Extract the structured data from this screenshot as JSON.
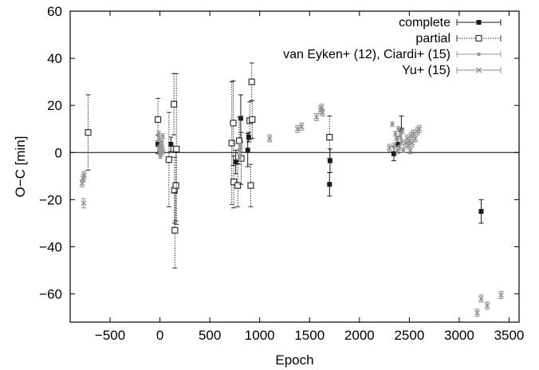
{
  "chart_data": {
    "type": "scatter",
    "xlabel": "Epoch",
    "ylabel": "O−C [min]",
    "xlim": [
      -900,
      3600
    ],
    "ylim": [
      -72,
      60
    ],
    "xticks": [
      -500,
      0,
      500,
      1000,
      1500,
      2000,
      2500,
      3000,
      3500
    ],
    "yticks": [
      -60,
      -40,
      -20,
      0,
      20,
      40,
      60
    ],
    "zero_line": true,
    "grid": false,
    "legend_position": "top-right",
    "series": [
      {
        "name": "complete",
        "color": "#1a1a1a",
        "marker": "filled-square",
        "line": "solid",
        "points": [
          {
            "x": -20,
            "y": 3.5,
            "err": 4
          },
          {
            "x": 110,
            "y": 3.5,
            "err": 3
          },
          {
            "x": 760,
            "y": -4,
            "err": 5
          },
          {
            "x": 810,
            "y": 14.5,
            "err": 10
          },
          {
            "x": 880,
            "y": 1,
            "err": 7
          },
          {
            "x": 890,
            "y": 6.5,
            "err": 2
          },
          {
            "x": 1700,
            "y": -13.5,
            "err": 5
          },
          {
            "x": 1705,
            "y": -3.5,
            "err": 5
          },
          {
            "x": 2345,
            "y": -0.5,
            "err": 3
          },
          {
            "x": 2385,
            "y": 3.5,
            "err": 3.5
          },
          {
            "x": 2420,
            "y": 9.5,
            "err": 6
          },
          {
            "x": 3220,
            "y": -25,
            "err": 5
          }
        ]
      },
      {
        "name": "partial",
        "color": "#333333",
        "marker": "open-square",
        "line": "dotted",
        "points": [
          {
            "x": -720,
            "y": 8.5,
            "err": 16
          },
          {
            "x": -20,
            "y": 14,
            "err": 9
          },
          {
            "x": 90,
            "y": -3,
            "err": 20
          },
          {
            "x": 140,
            "y": 20.5,
            "err": 13
          },
          {
            "x": 145,
            "y": -16,
            "err": 14
          },
          {
            "x": 150,
            "y": -33,
            "err": 16
          },
          {
            "x": 160,
            "y": -14,
            "err": 15
          },
          {
            "x": 165,
            "y": 1.5,
            "err": 32
          },
          {
            "x": 720,
            "y": 4,
            "err": 26
          },
          {
            "x": 735,
            "y": 12.5,
            "err": 18
          },
          {
            "x": 740,
            "y": -12.5,
            "err": 11
          },
          {
            "x": 780,
            "y": -14,
            "err": 9
          },
          {
            "x": 795,
            "y": 5,
            "err": 10
          },
          {
            "x": 815,
            "y": -2.5,
            "err": 11
          },
          {
            "x": 900,
            "y": 13.5,
            "err": 8
          },
          {
            "x": 910,
            "y": -14,
            "err": 9
          },
          {
            "x": 920,
            "y": 30,
            "err": 8
          },
          {
            "x": 925,
            "y": 14,
            "err": 8
          },
          {
            "x": 1700,
            "y": 6.5,
            "err": 9
          }
        ]
      },
      {
        "name": "van Eyken+ (12), Ciardi+ (15)",
        "color": "#9a9a9a",
        "marker": "filled-circle",
        "line": "solid",
        "points": [
          {
            "x": -12,
            "y": 8,
            "err": 1
          },
          {
            "x": -8,
            "y": 6,
            "err": 1
          },
          {
            "x": -4,
            "y": 2,
            "err": 1
          },
          {
            "x": 0,
            "y": 0,
            "err": 1
          },
          {
            "x": 4,
            "y": -1.5,
            "err": 1
          },
          {
            "x": 8,
            "y": 3.5,
            "err": 1
          },
          {
            "x": 12,
            "y": 1.5,
            "err": 1
          },
          {
            "x": 16,
            "y": -0.5,
            "err": 1
          },
          {
            "x": 20,
            "y": 4.5,
            "err": 1
          },
          {
            "x": 24,
            "y": 2.5,
            "err": 1
          },
          {
            "x": 28,
            "y": 7,
            "err": 1
          },
          {
            "x": 32,
            "y": 0.5,
            "err": 1
          },
          {
            "x": 795,
            "y": 0.5,
            "err": 1
          },
          {
            "x": 800,
            "y": -2,
            "err": 1
          },
          {
            "x": 805,
            "y": 3,
            "err": 1
          },
          {
            "x": 810,
            "y": 1.5,
            "err": 1
          },
          {
            "x": 2330,
            "y": 12,
            "err": 1
          },
          {
            "x": 2350,
            "y": 3,
            "err": 1
          },
          {
            "x": 2360,
            "y": 8,
            "err": 1
          },
          {
            "x": 2370,
            "y": 6,
            "err": 1
          },
          {
            "x": 2380,
            "y": 0.5,
            "err": 1
          },
          {
            "x": 2390,
            "y": 10,
            "err": 1
          },
          {
            "x": 2400,
            "y": 2,
            "err": 1
          },
          {
            "x": 2410,
            "y": 7,
            "err": 1
          },
          {
            "x": 2420,
            "y": 4.5,
            "err": 1
          },
          {
            "x": 2430,
            "y": 9,
            "err": 1
          },
          {
            "x": 2440,
            "y": 1,
            "err": 1
          }
        ]
      },
      {
        "name": "Yu+ (15)",
        "color": "#8c8c8c",
        "marker": "cross",
        "line": "solid",
        "points": [
          {
            "x": -780,
            "y": -13,
            "err": 1.5
          },
          {
            "x": -770,
            "y": -11,
            "err": 1.5
          },
          {
            "x": -760,
            "y": -9.5,
            "err": 1.5
          },
          {
            "x": -765,
            "y": -21.5,
            "err": 2
          },
          {
            "x": 1100,
            "y": 6,
            "err": 1.5
          },
          {
            "x": 1380,
            "y": 10,
            "err": 1.5
          },
          {
            "x": 1420,
            "y": 11,
            "err": 1.5
          },
          {
            "x": 1570,
            "y": 15,
            "err": 1.5
          },
          {
            "x": 1610,
            "y": 18,
            "err": 1.5
          },
          {
            "x": 1620,
            "y": 19,
            "err": 1.5
          },
          {
            "x": 1630,
            "y": 17,
            "err": 1.5
          },
          {
            "x": 2300,
            "y": 2,
            "err": 1.5
          },
          {
            "x": 2460,
            "y": 4,
            "err": 1.5
          },
          {
            "x": 2480,
            "y": 6,
            "err": 1.5
          },
          {
            "x": 2490,
            "y": 3,
            "err": 1.5
          },
          {
            "x": 2500,
            "y": 5,
            "err": 1.5
          },
          {
            "x": 2510,
            "y": 1,
            "err": 1.5
          },
          {
            "x": 2520,
            "y": 7,
            "err": 1.5
          },
          {
            "x": 2530,
            "y": 4,
            "err": 1.5
          },
          {
            "x": 2540,
            "y": 8,
            "err": 1.5
          },
          {
            "x": 2560,
            "y": 6,
            "err": 1.5
          },
          {
            "x": 2580,
            "y": 9,
            "err": 1.5
          },
          {
            "x": 2600,
            "y": 10,
            "err": 1.5
          },
          {
            "x": 3180,
            "y": -68,
            "err": 1.5
          },
          {
            "x": 3220,
            "y": -62,
            "err": 1.5
          },
          {
            "x": 3280,
            "y": -65,
            "err": 1.5
          },
          {
            "x": 3420,
            "y": -60.5,
            "err": 1.5
          }
        ]
      }
    ]
  }
}
